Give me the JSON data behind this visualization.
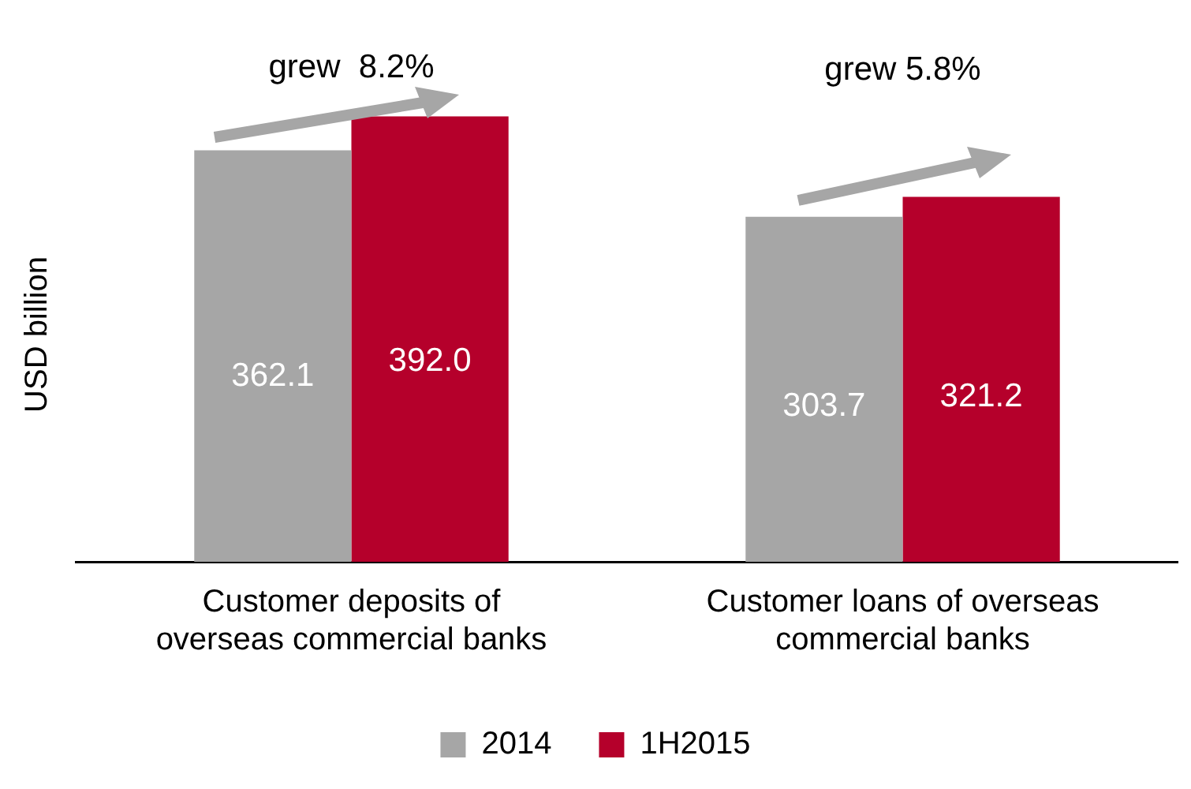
{
  "chart_data": {
    "type": "bar",
    "ylabel": "USD billion",
    "categories": [
      "Customer deposits of overseas commercial banks",
      "Customer loans of overseas commercial banks"
    ],
    "series": [
      {
        "name": "2014",
        "color": "#a6a6a6",
        "values": [
          362.1,
          303.7
        ],
        "value_labels": [
          "362.1",
          "303.7"
        ]
      },
      {
        "name": "1H2015",
        "color": "#b5002b",
        "values": [
          392.0,
          321.2
        ],
        "value_labels": [
          "392.0",
          "321.2"
        ]
      }
    ],
    "legend": "bottom",
    "annotations": [
      "grew  8.2%",
      "grew 5.8%"
    ]
  }
}
